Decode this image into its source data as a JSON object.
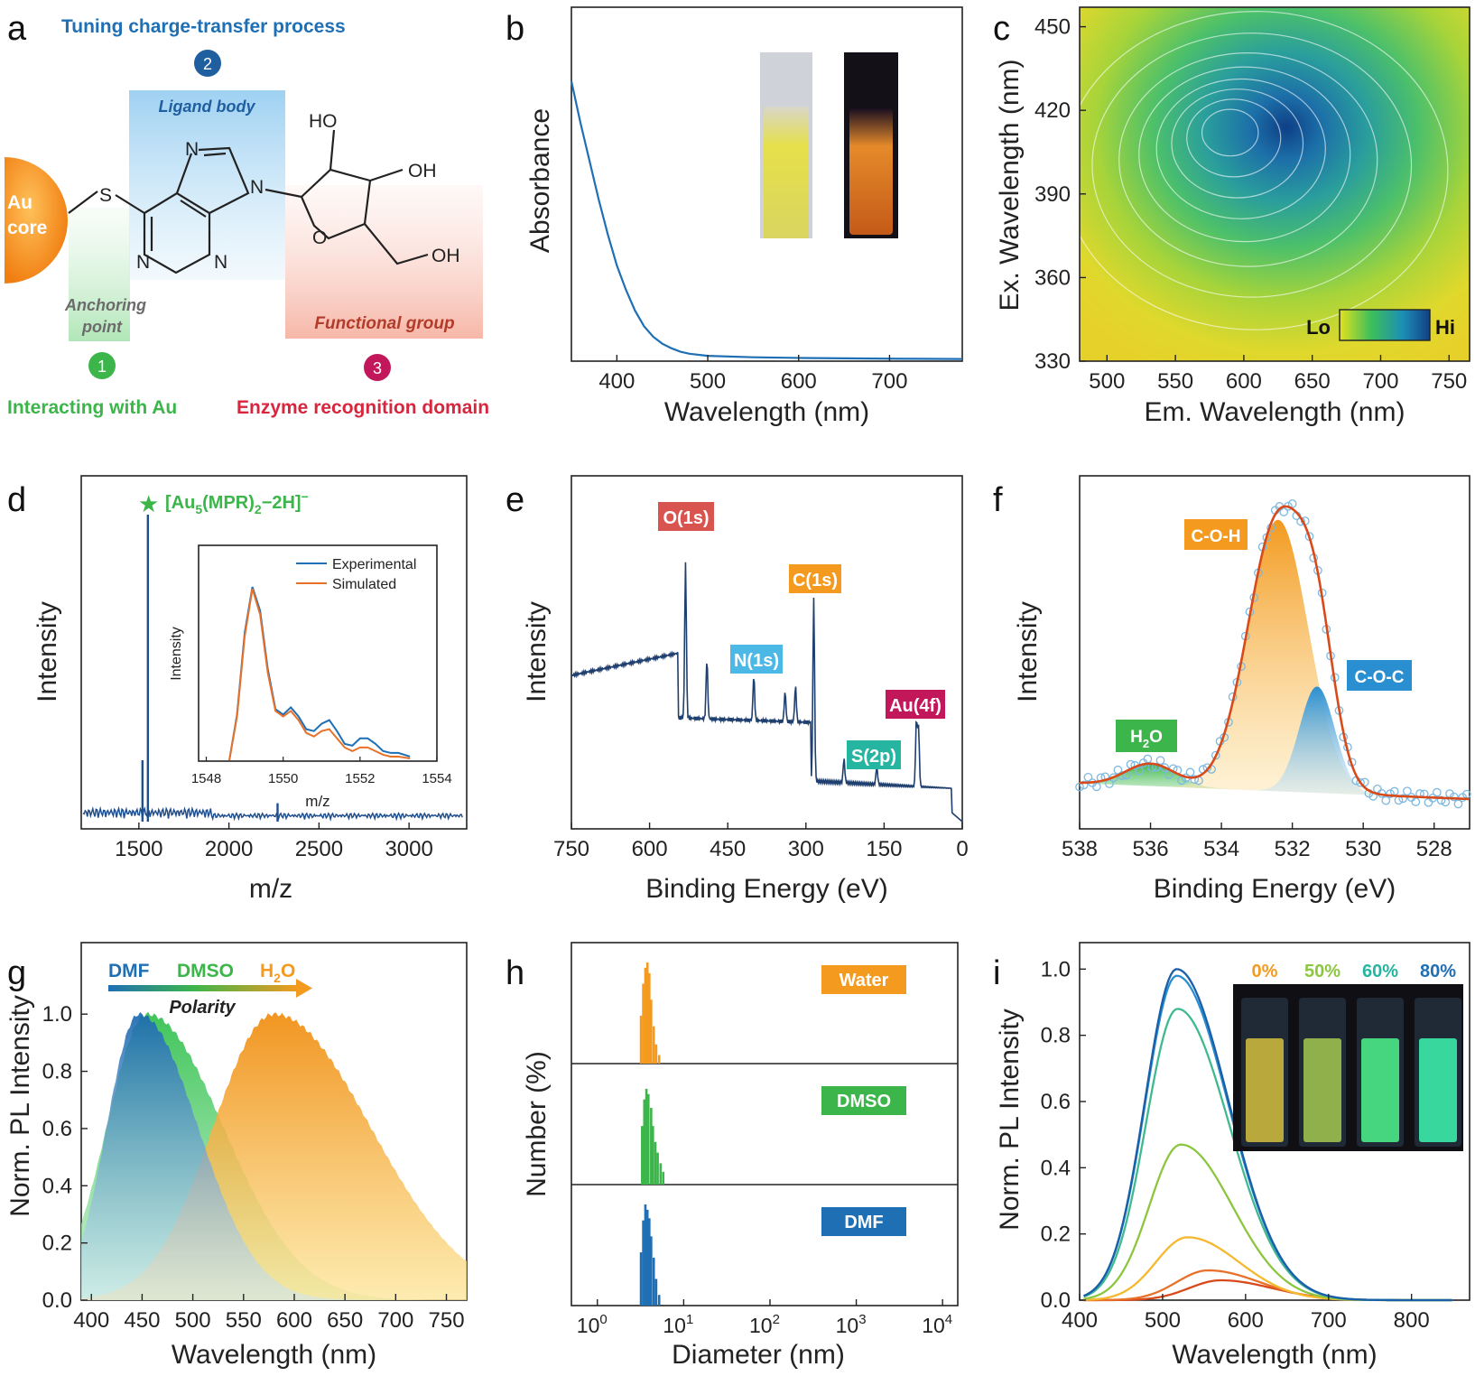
{
  "panel_letters": [
    "a",
    "b",
    "c",
    "d",
    "e",
    "f",
    "g",
    "h",
    "i"
  ],
  "schematic": {
    "title": "Tuning charge-transfer process",
    "ligand_body": "Ligand body",
    "core_line1": "Au",
    "core_line2": "core",
    "anchoring_line1": "Anchoring",
    "anchoring_line2": "point",
    "functional_group": "Functional group",
    "badges": [
      "1",
      "2",
      "3"
    ],
    "interacting": "Interacting with Au",
    "enzyme": "Enzyme recognition domain",
    "atoms": {
      "S": "S",
      "N": "N",
      "O": "O",
      "HO": "HO",
      "OH": "OH"
    },
    "colors": {
      "blue": "#1f6fb5",
      "green": "#3cb54a",
      "red": "#d7263d",
      "orange": "#f39a1f"
    }
  },
  "chart_data": [
    {
      "panel": "b",
      "type": "line",
      "xlabel": "Wavelength (nm)",
      "ylabel": "Absorbance",
      "xlim": [
        350,
        780
      ],
      "xticks": [
        400,
        500,
        600,
        700
      ],
      "ylim": [
        0,
        1
      ],
      "x": [
        350,
        360,
        370,
        380,
        390,
        400,
        410,
        420,
        430,
        440,
        450,
        460,
        470,
        480,
        500,
        550,
        600,
        650,
        700,
        780
      ],
      "y": [
        0.8,
        0.68,
        0.57,
        0.46,
        0.36,
        0.27,
        0.2,
        0.14,
        0.095,
        0.065,
        0.045,
        0.032,
        0.022,
        0.016,
        0.01,
        0.006,
        0.004,
        0.003,
        0.002,
        0.001
      ],
      "color": "#1f6fb5",
      "inset": "vial photos (daylight / UV)"
    },
    {
      "panel": "c",
      "type": "heatmap",
      "xlabel": "Em. Wavelength (nm)",
      "ylabel": "Ex. Wavelength (nm)",
      "xlim": [
        480,
        765
      ],
      "ylim": [
        330,
        457
      ],
      "xticks": [
        500,
        550,
        600,
        650,
        700,
        750
      ],
      "yticks": [
        330,
        360,
        390,
        420,
        450
      ],
      "peak": {
        "em": 590,
        "ex": 412
      },
      "colorbar": {
        "lo": "Lo",
        "hi": "Hi"
      }
    },
    {
      "panel": "d",
      "type": "line",
      "xlabel": "m/z",
      "ylabel": "Intensity",
      "xlim": [
        1180,
        3320
      ],
      "xticks": [
        1500,
        2000,
        2500,
        3000
      ],
      "peaks": [
        {
          "x": 1550,
          "y": 1.0
        },
        {
          "x": 1520,
          "y": 0.2
        },
        {
          "x": 2270,
          "y": 0.06
        }
      ],
      "annotation": {
        "prefix": "[Au",
        "sub1": "5",
        "mid": "(MPR)",
        "sub2": "2",
        "suffix": "−2H]",
        "sup": "−"
      },
      "inset": {
        "xlabel": "m/z",
        "ylabel": "Intensity",
        "xticks": [
          1548,
          1550,
          1552,
          1554
        ],
        "series": [
          {
            "name": "Experimental",
            "color": "#1f6fb5",
            "x": [
              1548.6,
              1548.8,
              1549.0,
              1549.2,
              1549.4,
              1549.6,
              1549.8,
              1550.0,
              1550.2,
              1550.4,
              1550.6,
              1550.8,
              1551.0,
              1551.2,
              1551.4,
              1551.6,
              1551.8,
              1552.0,
              1552.2,
              1552.4,
              1552.6,
              1552.8,
              1553.0,
              1553.3
            ],
            "y": [
              0.0,
              0.25,
              0.7,
              0.95,
              0.82,
              0.5,
              0.28,
              0.25,
              0.29,
              0.24,
              0.17,
              0.16,
              0.2,
              0.22,
              0.16,
              0.09,
              0.08,
              0.12,
              0.12,
              0.09,
              0.05,
              0.04,
              0.04,
              0.02
            ]
          },
          {
            "name": "Simulated",
            "color": "#e8712a",
            "x": [
              1548.6,
              1548.8,
              1549.0,
              1549.2,
              1549.4,
              1549.6,
              1549.8,
              1550.0,
              1550.2,
              1550.4,
              1550.6,
              1550.8,
              1551.0,
              1551.2,
              1551.4,
              1551.6,
              1551.8,
              1552.0,
              1552.2,
              1552.4,
              1552.6,
              1552.8,
              1553.0,
              1553.3
            ],
            "y": [
              0.0,
              0.24,
              0.68,
              0.94,
              0.8,
              0.48,
              0.27,
              0.24,
              0.27,
              0.22,
              0.15,
              0.13,
              0.16,
              0.17,
              0.12,
              0.07,
              0.05,
              0.07,
              0.07,
              0.05,
              0.03,
              0.02,
              0.02,
              0.01
            ]
          }
        ]
      }
    },
    {
      "panel": "e",
      "type": "line",
      "xlabel": "Binding Energy (eV)",
      "ylabel": "Intensity",
      "xlim": [
        750,
        0
      ],
      "xticks": [
        750,
        600,
        450,
        300,
        150,
        0
      ],
      "labels": [
        {
          "text": "O(1s)",
          "color": "#d9534f"
        },
        {
          "text": "C(1s)",
          "color": "#f39a1f"
        },
        {
          "text": "N(1s)",
          "color": "#4cb8e6"
        },
        {
          "text": "Au(4f)",
          "color": "#c2185b"
        },
        {
          "text": "S(2p)",
          "color": "#26b5a0"
        }
      ],
      "color": "#1f3f6e"
    },
    {
      "panel": "f",
      "type": "area",
      "xlabel": "Binding Energy (eV)",
      "ylabel": "Intensity",
      "xlim": [
        538,
        527
      ],
      "xticks": [
        538,
        536,
        534,
        532,
        530,
        528
      ],
      "components": [
        {
          "name": "H2O",
          "label_main": "H",
          "label_sub": "2",
          "label_end": "O",
          "center": 536.0,
          "height": 0.08,
          "width": 0.7,
          "color": "#3cb54a"
        },
        {
          "name": "C-O-H",
          "label": "C-O-H",
          "center": 532.4,
          "height": 0.97,
          "width": 0.85,
          "color": "#f39a1f"
        },
        {
          "name": "C-O-C",
          "label": "C-O-C",
          "center": 531.3,
          "height": 0.38,
          "width": 0.5,
          "color": "#2a8fd0"
        }
      ]
    },
    {
      "panel": "g",
      "type": "area",
      "xlabel": "Wavelength (nm)",
      "ylabel": "Norm. PL Intensity",
      "xlim": [
        390,
        770
      ],
      "ylim": [
        0,
        1.25
      ],
      "xticks": [
        400,
        450,
        500,
        550,
        600,
        650,
        700,
        750
      ],
      "yticks": [
        0.0,
        0.2,
        0.4,
        0.6,
        0.8,
        1.0
      ],
      "legend": {
        "dmf": "DMF",
        "dmso": "DMSO",
        "h2o_main": "H",
        "h2o_sub": "2",
        "h2o_end": "O",
        "arrow": "Polarity"
      },
      "series": [
        {
          "name": "DMSO",
          "color": "#3cb54a",
          "peak": 455,
          "left_w": 40,
          "right_w": 75
        },
        {
          "name": "H2O",
          "color": "#f39a1f",
          "peak": 580,
          "left_w": 60,
          "right_w": 95
        },
        {
          "name": "DMF",
          "color": "#1f6fb5",
          "peak": 447,
          "left_w": 32,
          "right_w": 58
        }
      ]
    },
    {
      "panel": "h",
      "type": "bar",
      "xlabel": "Diameter (nm)",
      "ylabel": "Number (%)",
      "xscale": "log",
      "xlim": [
        0.5,
        15000
      ],
      "xtick_base": "10",
      "xtick_exponents": [
        "0",
        "1",
        "2",
        "3",
        "4"
      ],
      "series": [
        {
          "name": "Water",
          "color": "#f39a1f",
          "x": [
            3.2,
            3.4,
            3.6,
            3.8,
            4.0,
            4.2,
            4.5,
            4.8,
            5.2
          ],
          "values": [
            0.45,
            0.75,
            0.9,
            0.95,
            0.85,
            0.6,
            0.35,
            0.18,
            0.08
          ]
        },
        {
          "name": "DMSO",
          "color": "#3cb54a",
          "x": [
            3.3,
            3.5,
            3.7,
            3.9,
            4.2,
            4.4,
            4.7,
            5.0,
            5.4,
            5.8
          ],
          "values": [
            0.55,
            0.8,
            0.9,
            0.85,
            0.72,
            0.55,
            0.4,
            0.3,
            0.2,
            0.12
          ]
        },
        {
          "name": "DMF",
          "color": "#1f6fb5",
          "x": [
            3.2,
            3.4,
            3.6,
            3.8,
            4.0,
            4.2,
            4.5,
            4.8,
            5.2
          ],
          "values": [
            0.5,
            0.8,
            0.95,
            0.9,
            0.82,
            0.65,
            0.45,
            0.25,
            0.1
          ]
        }
      ]
    },
    {
      "panel": "i",
      "type": "line",
      "xlabel": "Wavelength (nm)",
      "ylabel": "Norm. PL Intensity",
      "xlim": [
        400,
        870
      ],
      "ylim": [
        0,
        1.08
      ],
      "xticks": [
        400,
        500,
        600,
        700,
        800
      ],
      "yticks": [
        0.0,
        0.2,
        0.4,
        0.6,
        0.8,
        1.0
      ],
      "inset_labels": [
        {
          "text": "0%",
          "color": "#f39a1f"
        },
        {
          "text": "50%",
          "color": "#8cc63f"
        },
        {
          "text": "60%",
          "color": "#26b5a0"
        },
        {
          "text": "80%",
          "color": "#1f6fb5"
        }
      ],
      "series": [
        {
          "peak": 570,
          "height": 0.06,
          "color": "#d84a1b"
        },
        {
          "peak": 555,
          "height": 0.09,
          "color": "#e8712a"
        },
        {
          "peak": 530,
          "height": 0.19,
          "color": "#f5b82e"
        },
        {
          "peak": 522,
          "height": 0.47,
          "color": "#8cc63f"
        },
        {
          "peak": 518,
          "height": 0.88,
          "color": "#3fb98f"
        },
        {
          "peak": 517,
          "height": 0.98,
          "color": "#2a8fd0"
        },
        {
          "peak": 517,
          "height": 1.0,
          "color": "#1a5fa8"
        }
      ]
    }
  ]
}
